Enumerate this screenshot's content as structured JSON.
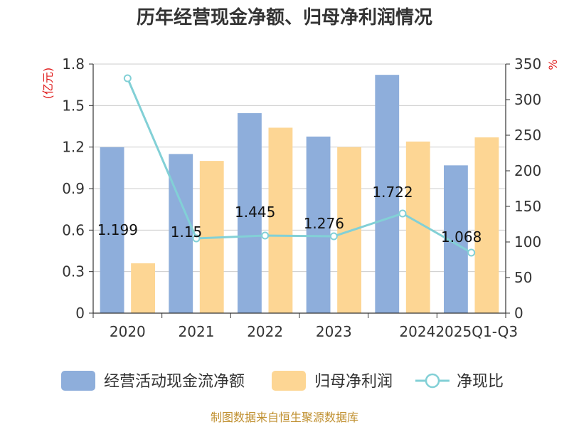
{
  "colors": {
    "bar_cash": "#8eaedb",
    "bar_profit": "#fdd694",
    "line": "#82d0d6",
    "unit": "#e02020",
    "source": "#c09030"
  },
  "chart_data": {
    "type": "bar",
    "title": "历年经营现金净额、归母净利润情况",
    "categories": [
      "2020",
      "2021",
      "2022",
      "2023",
      "2024",
      "2025Q1-Q3"
    ],
    "y_left": {
      "unit_label": "(亿元)",
      "ylim": [
        0,
        1.8
      ],
      "ticks": [
        "0",
        "0.3",
        "0.6",
        "0.9",
        "1.2",
        "1.5",
        "1.8"
      ]
    },
    "y_right": {
      "unit_label": "%",
      "ylim": [
        0,
        350
      ],
      "ticks": [
        "0",
        "50",
        "100",
        "150",
        "200",
        "250",
        "300",
        "350"
      ]
    },
    "grid": true,
    "legend_position": "bottom",
    "series": [
      {
        "name": "经营活动现金流净额",
        "type": "bar",
        "axis": "left",
        "values": [
          1.199,
          1.15,
          1.445,
          1.276,
          1.722,
          1.068
        ]
      },
      {
        "name": "归母净利润",
        "type": "bar",
        "axis": "left",
        "values": [
          0.36,
          1.1,
          1.34,
          1.2,
          1.24,
          1.27
        ]
      },
      {
        "name": "净现比",
        "type": "line",
        "axis": "right",
        "values": [
          330,
          105,
          109,
          108,
          140,
          85
        ]
      }
    ],
    "data_labels": [
      "1.199",
      "1.15",
      "1.445",
      "1.276",
      "1.722",
      "1.068"
    ]
  },
  "footer": {
    "source": "制图数据来自恒生聚源数据库"
  }
}
